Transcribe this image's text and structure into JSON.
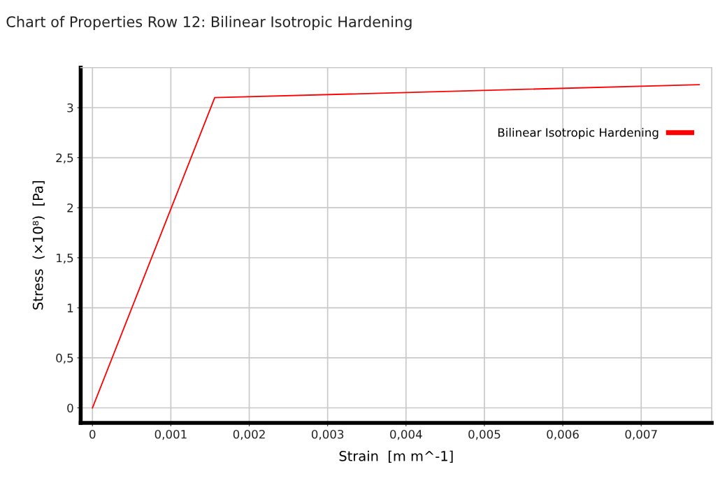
{
  "chart_data": {
    "type": "line",
    "title": "Chart of Properties Row 12: Bilinear Isotropic Hardening",
    "xlabel": "Strain  [m m^-1]",
    "ylabel": "Stress  (×10⁸)  [Pa]",
    "x": [
      0,
      0.00156,
      0.00774
    ],
    "series": [
      {
        "name": "Bilinear Isotropic Hardening",
        "color": "#ff0000",
        "values": [
          0,
          3.1,
          3.23
        ]
      }
    ],
    "xlim": [
      -0.00015,
      0.0079
    ],
    "xticks": [
      0,
      {
        "value": 0.001,
        "label": "0,001"
      },
      {
        "value": 0.002,
        "label": "0,002"
      },
      {
        "value": 0.003,
        "label": "0,003"
      },
      {
        "value": 0.004,
        "label": "0,004"
      },
      {
        "value": 0.005,
        "label": "0,005"
      },
      {
        "value": 0.006,
        "label": "0,006"
      },
      {
        "value": 0.007,
        "label": "0,007"
      }
    ],
    "ylim": [
      -0.15,
      3.4
    ],
    "yticks": [
      0,
      {
        "value": 0.5,
        "label": "0,5"
      },
      1,
      {
        "value": 1.5,
        "label": "1,5"
      },
      2,
      {
        "value": 2.5,
        "label": "2,5"
      },
      3
    ],
    "grid": true,
    "legend": "top right",
    "marker": "none",
    "line_style": "solid"
  }
}
